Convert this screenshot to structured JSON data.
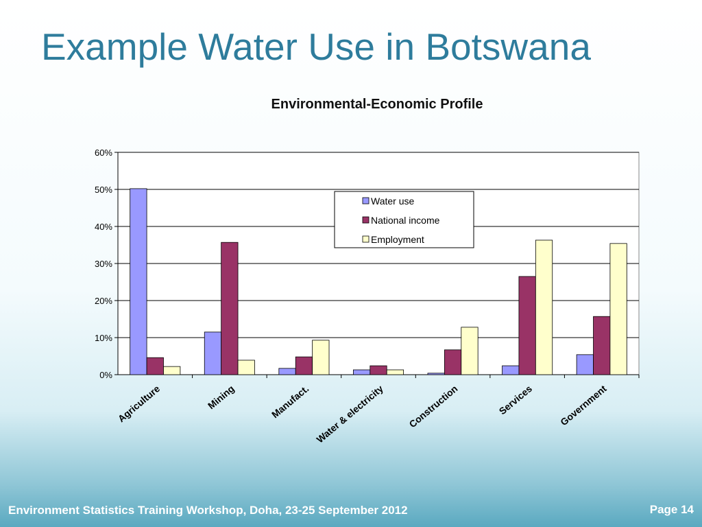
{
  "slide": {
    "title": "Example Water Use in Botswana",
    "footer": "Environment Statistics Training Workshop, Doha,  23-25 September 2012",
    "page": "Page 14"
  },
  "chart_data": {
    "type": "bar",
    "title": "Environmental-Economic Profile",
    "categories": [
      "Agriculture",
      "Mining",
      "Manufact.",
      "Water & electricity",
      "Construction",
      "Services",
      "Government"
    ],
    "series": [
      {
        "name": "Water use",
        "color": "#9999FF",
        "values": [
          50.2,
          11.5,
          1.7,
          1.3,
          0.4,
          2.4,
          5.4
        ]
      },
      {
        "name": "National income",
        "color": "#993366",
        "values": [
          4.6,
          35.7,
          4.8,
          2.4,
          6.7,
          26.5,
          15.7
        ]
      },
      {
        "name": "Employment",
        "color": "#FFFFCC",
        "values": [
          2.2,
          3.9,
          9.3,
          1.3,
          12.8,
          36.3,
          35.4
        ]
      }
    ],
    "ylim": [
      0,
      60
    ],
    "yticks": [
      "0%",
      "10%",
      "20%",
      "30%",
      "40%",
      "50%",
      "60%"
    ],
    "grid": true,
    "legend": "top-center"
  }
}
